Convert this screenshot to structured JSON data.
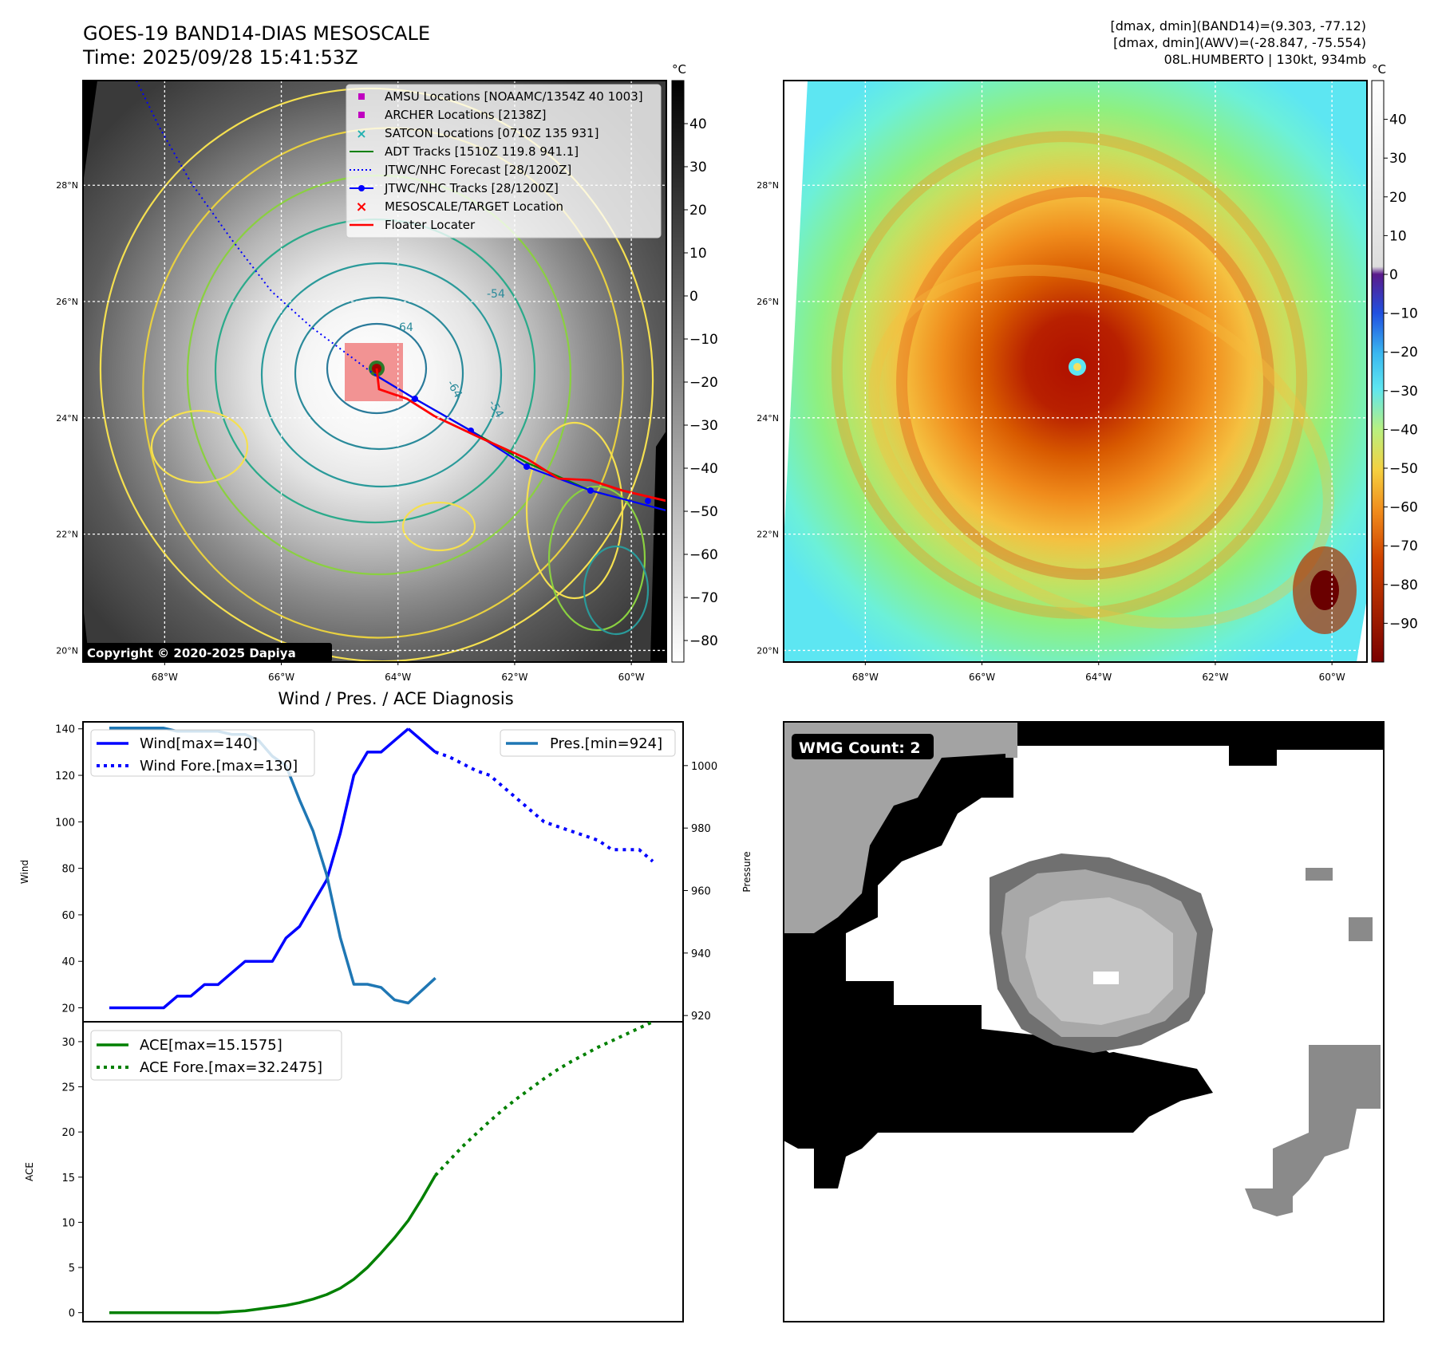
{
  "header": {
    "title_line1": "GOES-19 BAND14-DIAS MESOSCALE",
    "title_line2": "Time: 2025/09/28 15:41:53Z",
    "info_line1": "[dmax, dmin](BAND14)=(9.303, -77.12)",
    "info_line2": "[dmax, dmin](AWV)=(-28.847, -75.554)",
    "info_line3": "08L.HUMBERTO | 130kt, 934mb"
  },
  "map_axes": {
    "lat_labels": [
      "28°N",
      "26°N",
      "24°N",
      "22°N",
      "20°N"
    ],
    "lat_values": [
      28,
      26,
      24,
      22,
      20
    ],
    "lon_labels": [
      "68°W",
      "66°W",
      "64°W",
      "62°W",
      "60°W"
    ],
    "lon_values": [
      -68,
      -66,
      -64,
      -62,
      -60
    ],
    "lat_range": [
      19.8,
      29.8
    ],
    "lon_range": [
      -69.4,
      -59.4
    ]
  },
  "ir_panel": {
    "legend": [
      {
        "label": "AMSU Locations [NOAAMC/1354Z 40 1003]",
        "color": "#c000c0",
        "marker": "square"
      },
      {
        "label": "ARCHER Locations [2138Z]",
        "color": "#c000c0",
        "marker": "square"
      },
      {
        "label": "SATCON Locations [0710Z 135 931]",
        "color": "#20b0b0",
        "marker": "x"
      },
      {
        "label": "ADT Tracks [1510Z 119.8 941.1]",
        "color": "#008000",
        "marker": "line"
      },
      {
        "label": "JTWC/NHC Forecast [28/1200Z]",
        "color": "#0000ff",
        "marker": "dotted"
      },
      {
        "label": "JTWC/NHC Tracks [28/1200Z]",
        "color": "#0000ff",
        "marker": "line-dot"
      },
      {
        "label": "MESOSCALE/TARGET Location",
        "color": "#ff0000",
        "marker": "x"
      },
      {
        "label": "Floater Locater",
        "color": "#ff0000",
        "marker": "line"
      }
    ],
    "copyright": "Copyright © 2020-2025 Dapiya",
    "contour_labels": [
      "-54",
      "-64",
      "-64",
      "-54"
    ],
    "colorbar_unit": "°C",
    "colorbar_ticks": [
      "40",
      "30",
      "20",
      "10",
      "0",
      "−10",
      "−20",
      "−30",
      "−40",
      "−50",
      "−60",
      "−70",
      "−80"
    ],
    "colorbar_values": [
      40,
      30,
      20,
      10,
      0,
      -10,
      -20,
      -30,
      -40,
      -50,
      -60,
      -70,
      -80
    ],
    "colorbar_range": [
      -85,
      50
    ]
  },
  "color_panel": {
    "colorbar_unit": "°C",
    "colorbar_ticks": [
      "40",
      "30",
      "20",
      "10",
      "0",
      "−10",
      "−20",
      "−30",
      "−40",
      "−50",
      "−60",
      "−70",
      "−80",
      "−90"
    ],
    "colorbar_values": [
      40,
      30,
      20,
      10,
      0,
      -10,
      -20,
      -30,
      -40,
      -50,
      -60,
      -70,
      -80,
      -90
    ],
    "colorbar_range": [
      -100,
      50
    ]
  },
  "diagnosis": {
    "title": "Wind / Pres. / ACE Diagnosis",
    "wind_ylabel": "Wind",
    "pres_ylabel": "Pressure",
    "ace_ylabel": "ACE",
    "legend_wind": "Wind[max=140]",
    "legend_wind_fore": "Wind Fore.[max=130]",
    "legend_pres": "Pres.[min=924]",
    "legend_ace": "ACE[max=15.1575]",
    "legend_ace_fore": "ACE Fore.[max=32.2475]",
    "wind_ticks": [
      "20",
      "40",
      "60",
      "80",
      "100",
      "120",
      "140"
    ],
    "pres_ticks": [
      "920",
      "940",
      "960",
      "980",
      "1000"
    ],
    "ace_ticks": [
      "0",
      "5",
      "10",
      "15",
      "20",
      "25",
      "30"
    ]
  },
  "wmg": {
    "label": "WMG Count: 2"
  },
  "chart_data": [
    {
      "type": "line",
      "title": "Wind / Pres. / ACE Diagnosis",
      "ylabel": "Wind",
      "ylim": [
        14,
        143
      ],
      "y2label": "Pressure",
      "y2lim": [
        918,
        1014
      ],
      "x": [
        0,
        1,
        2,
        3,
        4,
        5,
        6,
        7,
        8,
        9,
        10,
        11,
        12,
        13,
        14,
        15,
        16,
        17,
        18,
        19,
        20,
        21,
        22,
        23,
        24,
        25,
        26,
        27,
        28,
        29,
        30,
        31,
        32,
        33,
        34,
        35,
        36,
        37,
        38,
        39,
        40
      ],
      "series": [
        {
          "name": "Wind[max=140]",
          "axis": "left",
          "color": "#0000ff",
          "style": "solid",
          "x": [
            0,
            1,
            2,
            3,
            4,
            5,
            6,
            7,
            8,
            9,
            10,
            11,
            12,
            13,
            14,
            15,
            16,
            17,
            18,
            19,
            20,
            21,
            22
          ],
          "values": [
            20,
            20,
            20,
            20,
            20,
            25,
            25,
            30,
            30,
            35,
            40,
            40,
            40,
            50,
            55,
            65,
            75,
            95,
            120,
            130,
            130,
            135,
            140
          ]
        },
        {
          "name": "Wind[max=140] (after peak)",
          "axis": "left",
          "color": "#0000ff",
          "style": "solid",
          "x": [
            22,
            23,
            24
          ],
          "values": [
            140,
            135,
            130
          ]
        },
        {
          "name": "Wind Fore.[max=130]",
          "axis": "left",
          "color": "#0000ff",
          "style": "dotted",
          "x": [
            24,
            25,
            26,
            27,
            28,
            29,
            30,
            31,
            32,
            33,
            34,
            35,
            36,
            37,
            38,
            39,
            40
          ],
          "values": [
            130,
            128,
            125,
            122,
            120,
            115,
            110,
            105,
            100,
            98,
            96,
            94,
            92,
            88,
            88,
            88,
            83
          ]
        },
        {
          "name": "Pres.[min=924]",
          "axis": "right",
          "color": "#1f77b4",
          "style": "solid",
          "x": [
            0,
            1,
            2,
            3,
            4,
            5,
            6,
            7,
            8,
            9,
            10,
            11,
            12,
            13,
            14,
            15,
            16,
            17,
            18,
            19,
            20,
            21,
            22,
            23,
            24
          ],
          "values": [
            1012,
            1012,
            1012,
            1012,
            1012,
            1011,
            1011,
            1011,
            1011,
            1010,
            1010,
            1008,
            1003,
            1000,
            989,
            979,
            965,
            945,
            930,
            930,
            929,
            925,
            924,
            928,
            932
          ]
        }
      ]
    },
    {
      "type": "line",
      "ylabel": "ACE",
      "ylim": [
        -1,
        32.2
      ],
      "x": [
        0,
        1,
        2,
        3,
        4,
        5,
        6,
        7,
        8,
        9,
        10,
        11,
        12,
        13,
        14,
        15,
        16,
        17,
        18,
        19,
        20,
        21,
        22,
        23,
        24,
        25,
        26,
        27,
        28,
        29,
        30,
        31,
        32,
        33,
        34,
        35,
        36,
        37,
        38,
        39,
        40
      ],
      "series": [
        {
          "name": "ACE[max=15.1575]",
          "color": "#008000",
          "style": "solid",
          "x": [
            0,
            1,
            2,
            3,
            4,
            5,
            6,
            7,
            8,
            9,
            10,
            11,
            12,
            13,
            14,
            15,
            16,
            17,
            18,
            19,
            20,
            21,
            22,
            23,
            24
          ],
          "values": [
            0,
            0,
            0,
            0,
            0,
            0,
            0,
            0,
            0,
            0.1,
            0.2,
            0.4,
            0.6,
            0.8,
            1.1,
            1.5,
            2.0,
            2.7,
            3.7,
            5.0,
            6.6,
            8.3,
            10.2,
            12.6,
            15.2
          ]
        },
        {
          "name": "ACE Fore.[max=32.2475]",
          "color": "#008000",
          "style": "dotted",
          "x": [
            24,
            25,
            26,
            27,
            28,
            29,
            30,
            31,
            32,
            33,
            34,
            35,
            36,
            37,
            38,
            39,
            40
          ],
          "values": [
            15.2,
            16.8,
            18.4,
            19.8,
            21.2,
            22.5,
            23.7,
            24.8,
            25.9,
            26.9,
            27.8,
            28.6,
            29.4,
            30.1,
            30.8,
            31.5,
            32.2
          ]
        }
      ]
    }
  ]
}
